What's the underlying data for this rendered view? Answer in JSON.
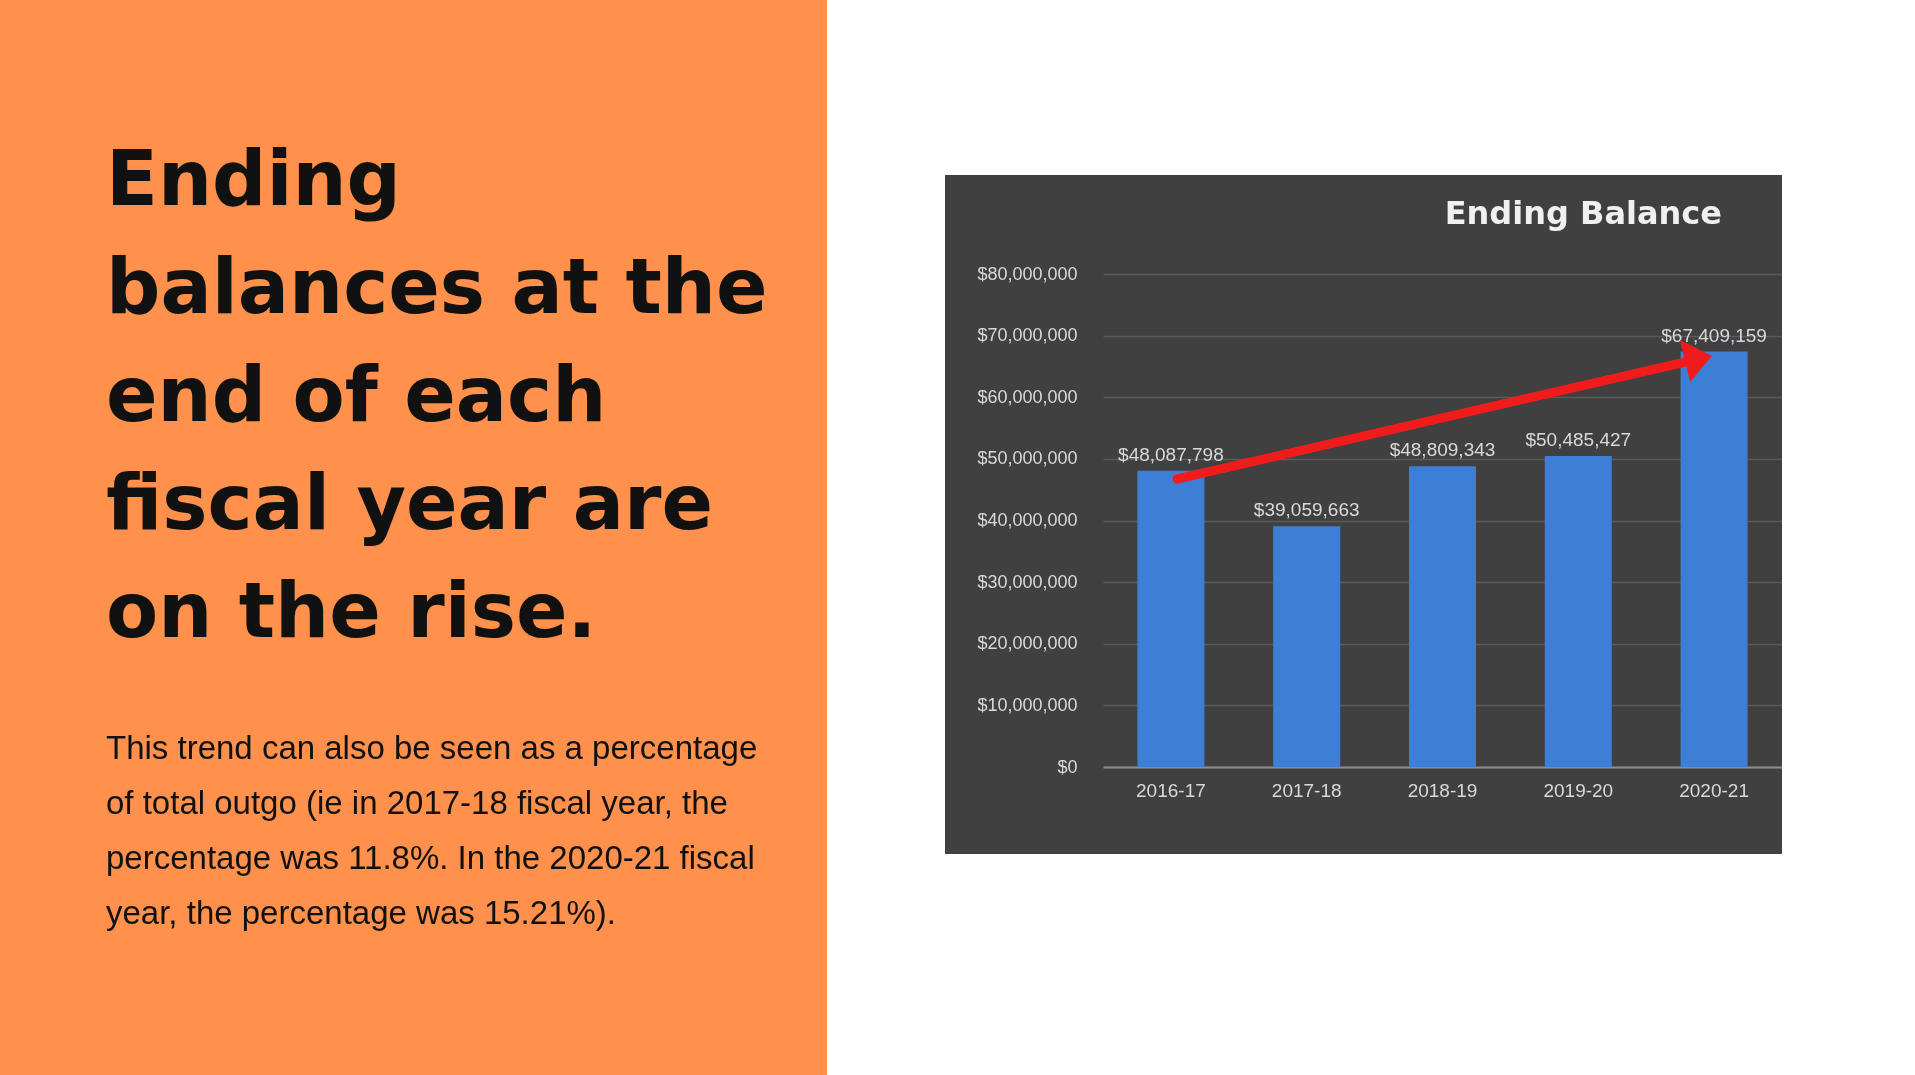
{
  "chart_data": {
    "type": "bar",
    "title": "Ending Balance",
    "annotations": [
      "Ending balances at the end of each fiscal year are on the rise.",
      "This trend can also be seen as a percentage of total outgo (ie in 2017-18 fiscal year, the percentage was 11.8%. In the 2020-21 fiscal year, the percentage was 15.21%)."
    ],
    "categories": [
      "2016-17",
      "2017-18",
      "2018-19",
      "2019-20",
      "2020-21"
    ],
    "values": [
      48087798,
      39059663,
      48809343,
      50485427,
      67409159
    ],
    "color": "#3d7fd6",
    "ylim": [
      0,
      80000000
    ],
    "yticks": [
      {
        "value": 0,
        "label": "$0"
      },
      {
        "value": 10000000,
        "label": "$10,000,000"
      },
      {
        "value": 20000000,
        "label": "$20,000,000"
      },
      {
        "value": 30000000,
        "label": "$30,000,000"
      },
      {
        "value": 40000000,
        "label": "$40,000,000"
      },
      {
        "value": 50000000,
        "label": "$50,000,000"
      },
      {
        "value": 60000000,
        "label": "$60,000,000"
      },
      {
        "value": 70000000,
        "label": "$70,000,000"
      },
      {
        "value": 80000000,
        "label": "$80,000,000"
      }
    ],
    "value_labels": [
      "$48,087,798",
      "$39,059,663",
      "$48,809,343",
      "$50,485,427",
      "$67,409,159"
    ],
    "grid": "y"
  }
}
